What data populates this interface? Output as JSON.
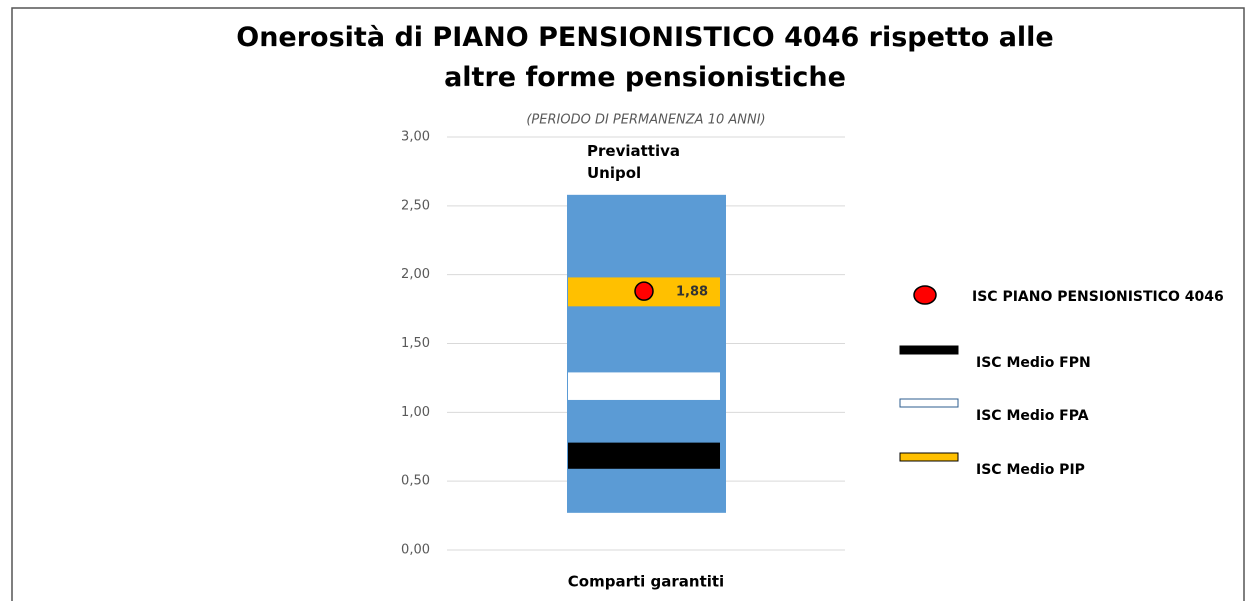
{
  "chart_data": {
    "type": "range",
    "title": "Onerosità di PIANO PENSIONISTICO 4046 rispetto alle altre forme pensionistiche",
    "subtitle": "(PERIODO DI PERMANENZA 10 ANNI)",
    "categories": [
      "Comparti garantiti"
    ],
    "ylim": [
      0,
      3
    ],
    "yticks": [
      {
        "value": 0,
        "label": "0,00"
      },
      {
        "value": 0.5,
        "label": "0,50"
      },
      {
        "value": 1,
        "label": "1,00"
      },
      {
        "value": 1.5,
        "label": "1,50"
      },
      {
        "value": 2,
        "label": "2,00"
      },
      {
        "value": 2.5,
        "label": "2,50"
      },
      {
        "value": 3,
        "label": "3,00"
      }
    ],
    "grid": true,
    "range": {
      "name": "Previattiva Unipol",
      "color": "#5b9bd5",
      "low": [
        0.27
      ],
      "high": [
        2.58
      ]
    },
    "point": {
      "name": "ISC PIANO PENSIONISTICO 4046",
      "color": "#ff0000",
      "values": [
        1.88
      ],
      "value_labels": [
        "1,88"
      ]
    },
    "series": [
      {
        "name": "ISC Medio FPN",
        "color": "#000000",
        "low": [
          0.59
        ],
        "high": [
          0.78
        ]
      },
      {
        "name": "ISC Medio FPA",
        "color": "#ffffff",
        "low": [
          1.09
        ],
        "high": [
          1.29
        ]
      },
      {
        "name": "ISC Medio PIP",
        "color": "#ffc000",
        "low": [
          1.77
        ],
        "high": [
          1.98
        ]
      }
    ]
  }
}
